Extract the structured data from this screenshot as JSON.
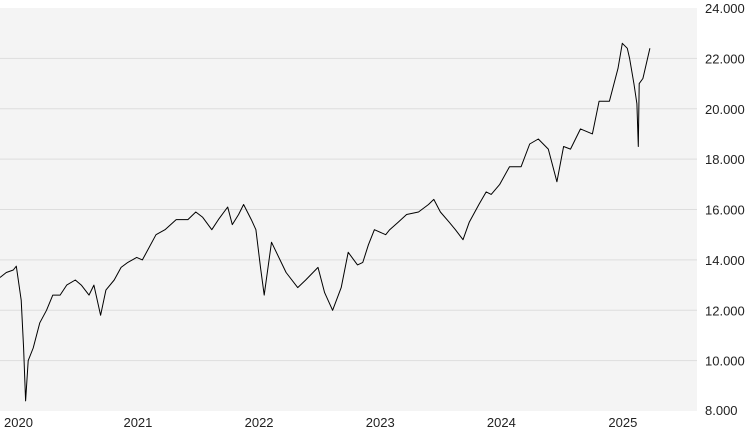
{
  "chart_data": {
    "type": "line",
    "title": "",
    "xlabel": "",
    "ylabel": "",
    "ylim": [
      8000,
      24000
    ],
    "yticks": [
      {
        "value": 8000,
        "label": "8.000"
      },
      {
        "value": 10000,
        "label": "10.000"
      },
      {
        "value": 12000,
        "label": "12.000"
      },
      {
        "value": 14000,
        "label": "14.000"
      },
      {
        "value": 16000,
        "label": "16.000"
      },
      {
        "value": 18000,
        "label": "18.000"
      },
      {
        "value": 20000,
        "label": "20.000"
      },
      {
        "value": 22000,
        "label": "22.000"
      },
      {
        "value": 24000,
        "label": "24.000"
      }
    ],
    "xlim": [
      "2020-01-01",
      "2025-10-01"
    ],
    "xticks": [
      {
        "value": "2020-01-01",
        "label": "2020"
      },
      {
        "value": "2021-01-01",
        "label": "2021"
      },
      {
        "value": "2022-01-01",
        "label": "2022"
      },
      {
        "value": "2023-01-01",
        "label": "2023"
      },
      {
        "value": "2024-01-01",
        "label": "2024"
      },
      {
        "value": "2025-01-01",
        "label": "2025"
      }
    ],
    "grid": "horizontal",
    "y_axis_position": "right",
    "colors": {
      "line": "#000000",
      "plot_background": "#f4f4f4",
      "grid": "#dddddd",
      "text": "#222222"
    },
    "series": [
      {
        "x": [
          "2020-01-01",
          "2020-01-20",
          "2020-02-10",
          "2020-02-19",
          "2020-03-05",
          "2020-03-12",
          "2020-03-18",
          "2020-03-26",
          "2020-04-10",
          "2020-04-30",
          "2020-05-20",
          "2020-06-08",
          "2020-06-30",
          "2020-07-20",
          "2020-08-15",
          "2020-09-02",
          "2020-09-25",
          "2020-10-10",
          "2020-10-30",
          "2020-11-15",
          "2020-12-10",
          "2020-12-31",
          "2021-01-20",
          "2021-02-16",
          "2021-03-05",
          "2021-04-15",
          "2021-05-12",
          "2021-06-15",
          "2021-07-20",
          "2021-08-13",
          "2021-09-02",
          "2021-09-30",
          "2021-10-20",
          "2021-11-17",
          "2021-12-01",
          "2021-12-20",
          "2022-01-04",
          "2022-01-27",
          "2022-02-10",
          "2022-02-24",
          "2022-03-07",
          "2022-03-29",
          "2022-05-12",
          "2022-06-16",
          "2022-07-10",
          "2022-08-16",
          "2022-09-05",
          "2022-09-29",
          "2022-10-25",
          "2022-11-15",
          "2022-12-13",
          "2022-12-29",
          "2023-01-15",
          "2023-02-02",
          "2023-03-08",
          "2023-03-20",
          "2023-04-15",
          "2023-05-10",
          "2023-06-15",
          "2023-07-15",
          "2023-07-31",
          "2023-08-20",
          "2023-09-15",
          "2023-10-04",
          "2023-10-27",
          "2023-11-15",
          "2023-12-14",
          "2024-01-05",
          "2024-01-20",
          "2024-02-15",
          "2024-03-15",
          "2024-04-19",
          "2024-05-15",
          "2024-06-10",
          "2024-07-10",
          "2024-08-05",
          "2024-08-25",
          "2024-09-15",
          "2024-10-15",
          "2024-11-20",
          "2024-12-10",
          "2025-01-10",
          "2025-02-05",
          "2025-02-18",
          "2025-03-05",
          "2025-03-12",
          "2025-03-25",
          "2025-04-03",
          "2025-04-07",
          "2025-04-10",
          "2025-04-21",
          "2025-05-12"
        ],
        "values": [
          13300,
          13500,
          13600,
          13750,
          12400,
          10500,
          8400,
          10000,
          10500,
          11500,
          12000,
          12600,
          12600,
          13000,
          13200,
          13000,
          12600,
          13000,
          11800,
          12800,
          13200,
          13700,
          13900,
          14100,
          14000,
          15000,
          15200,
          15600,
          15600,
          15900,
          15700,
          15200,
          15600,
          16100,
          15400,
          15800,
          16200,
          15600,
          15200,
          13700,
          12600,
          14700,
          13500,
          12900,
          13200,
          13700,
          12700,
          12000,
          12900,
          14300,
          13800,
          13900,
          14600,
          15200,
          15000,
          15200,
          15500,
          15800,
          15900,
          16200,
          16400,
          15900,
          15500,
          15200,
          14800,
          15500,
          16200,
          16700,
          16600,
          17000,
          17700,
          17700,
          18600,
          18800,
          18400,
          17100,
          18500,
          18400,
          19200,
          19000,
          20300,
          20300,
          21600,
          22600,
          22400,
          22000,
          21000,
          20200,
          18500,
          21000,
          21200,
          22400
        ]
      }
    ]
  }
}
